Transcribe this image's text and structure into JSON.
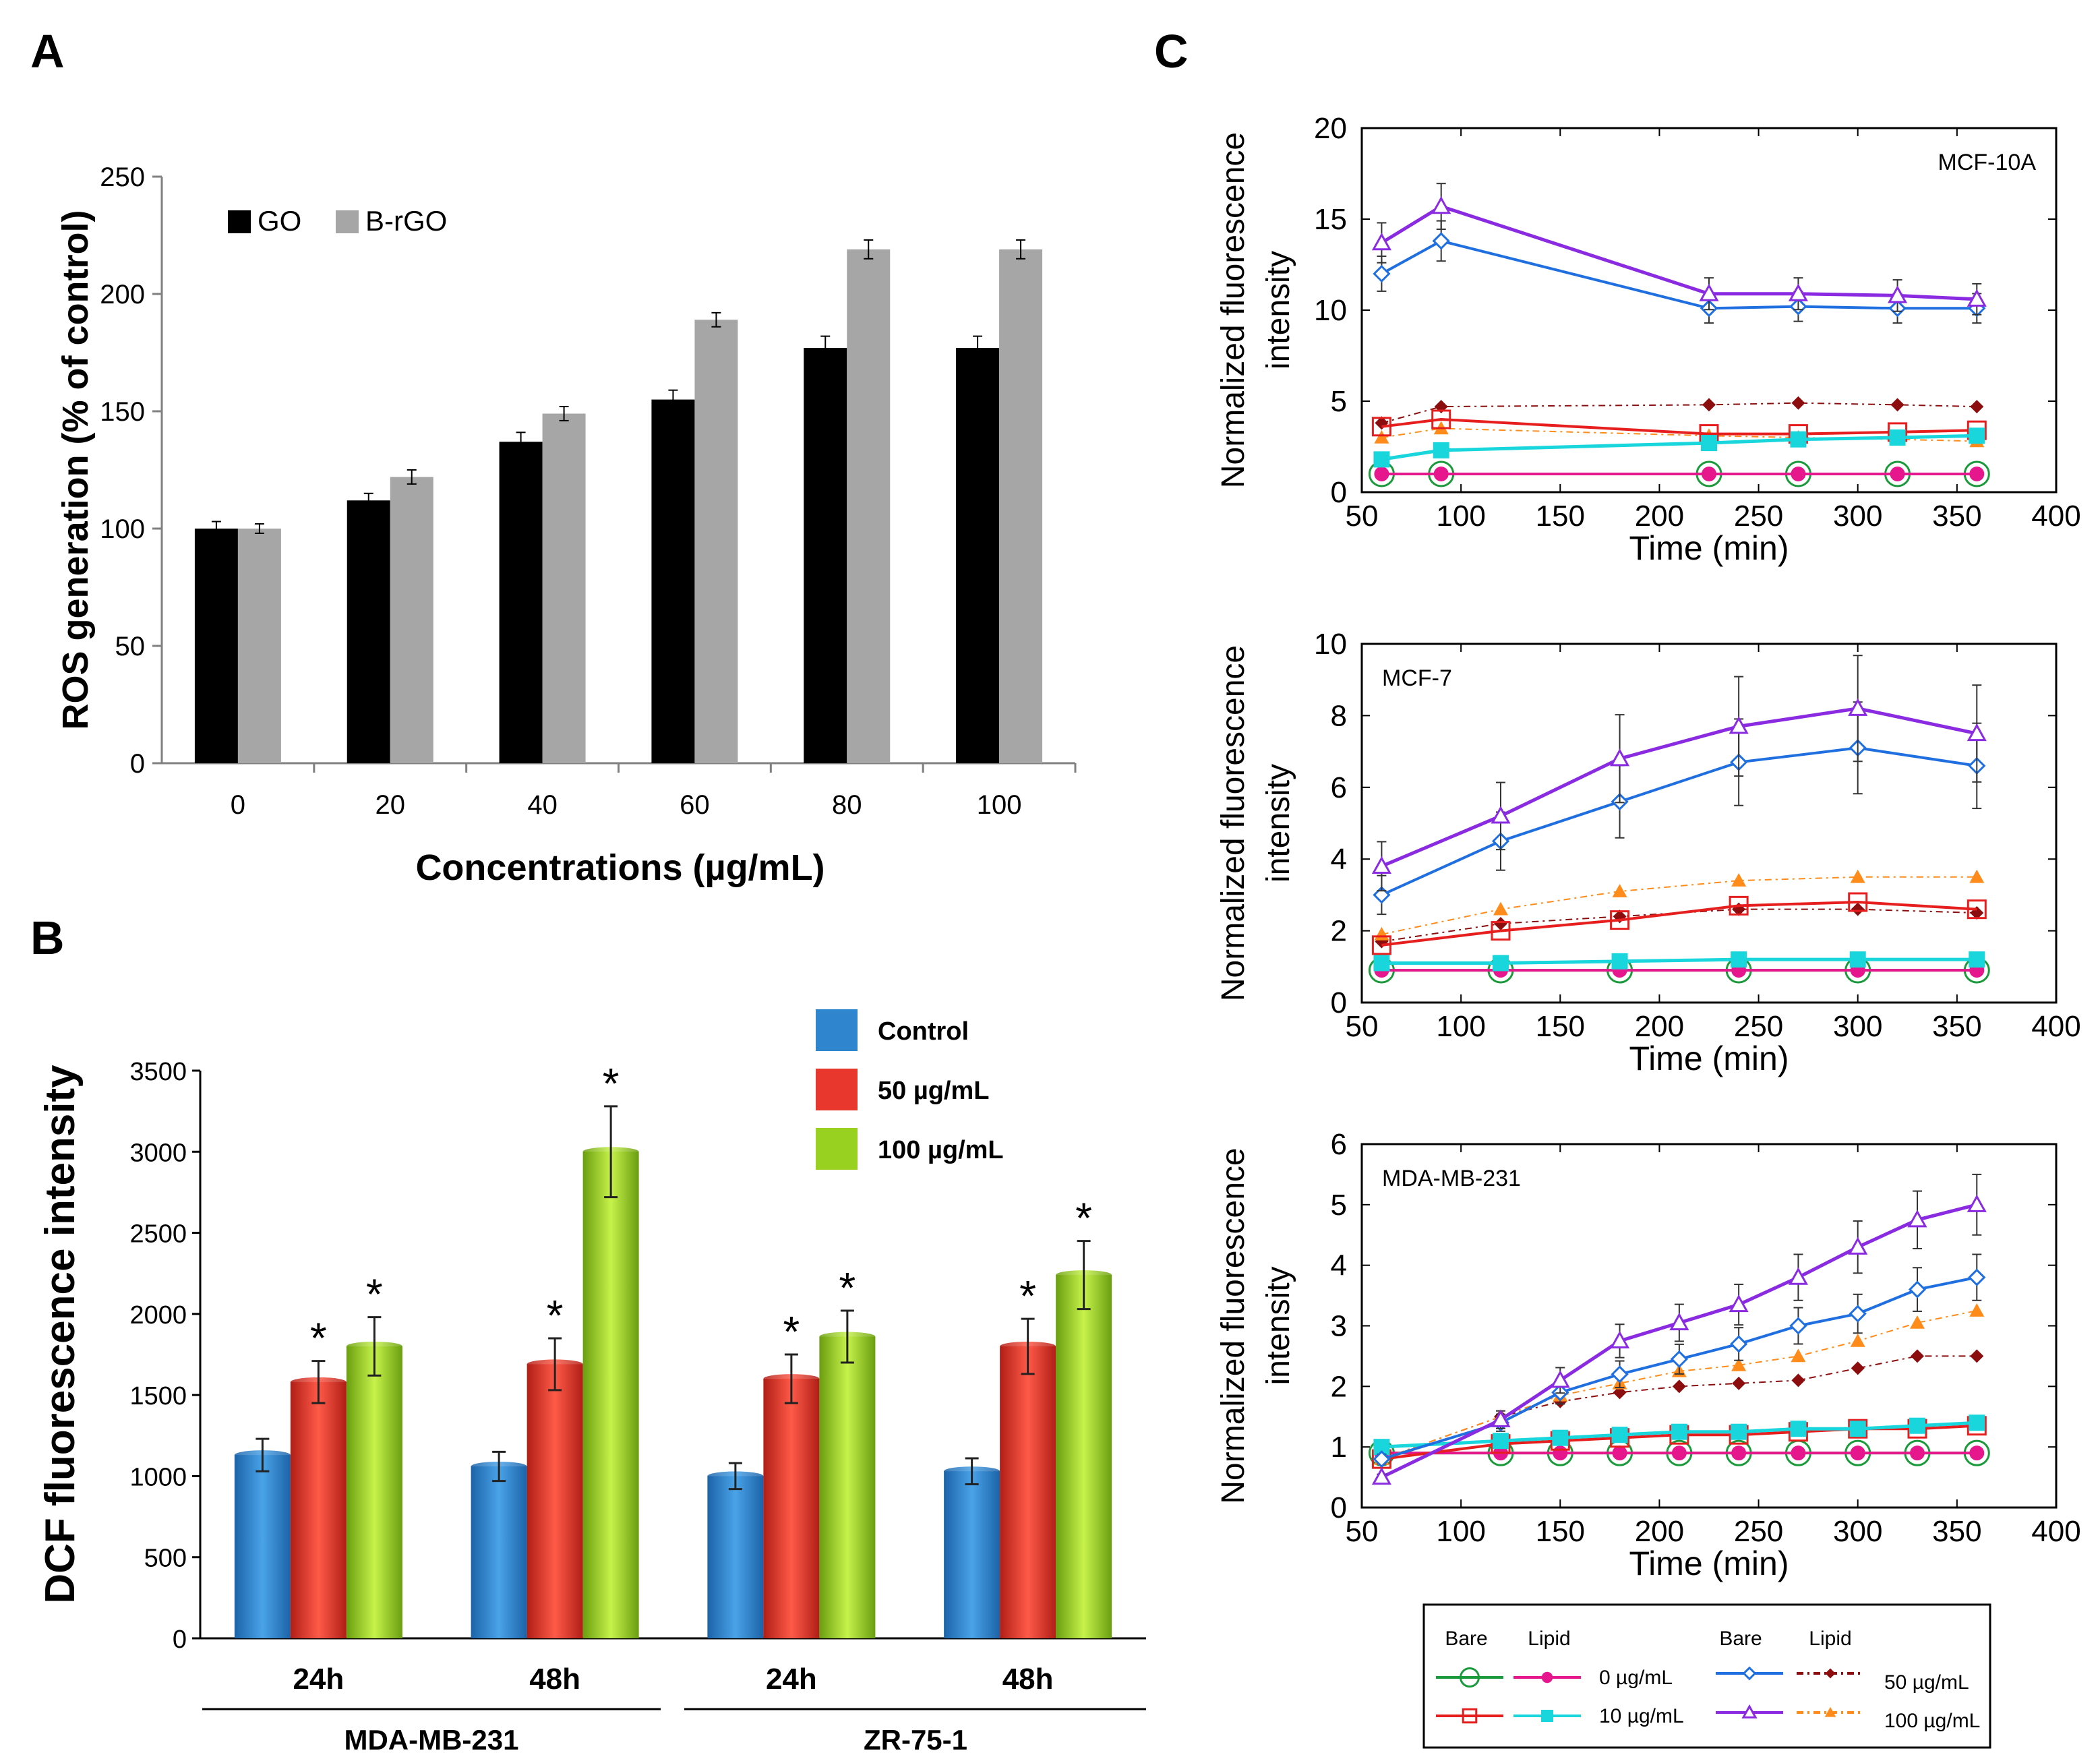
{
  "panels": {
    "a": "A",
    "b": "B",
    "c": "C"
  },
  "colors": {
    "go": "#000000",
    "brgo": "#a6a6a6",
    "control": "#2f86cf",
    "c50": "#e8372c",
    "c100": "#98d11f",
    "bare0": "#1a9a3a",
    "lipid0": "#e6178c",
    "bare10": "#e61e1e",
    "lipid10": "#19d6dc",
    "bare50": "#1f6fe0",
    "lipid50": "#8b0d0d",
    "bare100": "#8a2be2",
    "lipid100": "#ff8c1a"
  },
  "chart_data": [
    {
      "id": "A",
      "type": "bar",
      "title": "",
      "xlabel": "Concentrations (µg/mL)",
      "ylabel": "ROS generation (% of control)",
      "ylim": [
        0,
        250
      ],
      "yticks": [
        "0",
        "50",
        "100",
        "150",
        "200",
        "250"
      ],
      "categories": [
        "0",
        "20",
        "40",
        "60",
        "80",
        "100"
      ],
      "legend": [
        "GO",
        "B-rGO"
      ],
      "series": [
        {
          "name": "GO",
          "values": [
            100,
            112,
            137,
            155,
            177,
            177
          ],
          "errors": [
            3,
            3,
            4,
            4,
            5,
            5
          ]
        },
        {
          "name": "B-rGO",
          "values": [
            100,
            122,
            149,
            189,
            219,
            219
          ],
          "errors": [
            2,
            3,
            3,
            3,
            4,
            4
          ]
        }
      ]
    },
    {
      "id": "B",
      "type": "bar",
      "title": "",
      "xlabel": "",
      "ylabel": "DCF fluorescence intensity",
      "ylim": [
        0,
        3500
      ],
      "yticks": [
        "0",
        "500",
        "1000",
        "1500",
        "2000",
        "2500",
        "3000",
        "3500"
      ],
      "categories": [
        "24h",
        "48h",
        "24h",
        "48h"
      ],
      "groups": [
        "MDA-MB-231",
        "ZR-75-1"
      ],
      "star": "*",
      "legend": [
        "Control",
        "50 µg/mL",
        "100 µg/mL"
      ],
      "series": [
        {
          "name": "Control",
          "values": [
            1130,
            1060,
            1000,
            1030
          ],
          "errors": [
            100,
            90,
            80,
            80
          ],
          "significant": [
            false,
            false,
            false,
            false
          ]
        },
        {
          "name": "50 µg/mL",
          "values": [
            1580,
            1690,
            1600,
            1800
          ],
          "errors": [
            130,
            160,
            150,
            170
          ],
          "significant": [
            true,
            true,
            true,
            true
          ]
        },
        {
          "name": "100 µg/mL",
          "values": [
            1800,
            3000,
            1860,
            2240
          ],
          "errors": [
            180,
            280,
            160,
            210
          ],
          "significant": [
            true,
            true,
            true,
            true
          ]
        }
      ]
    },
    {
      "id": "C1",
      "type": "line",
      "label": "MCF-10A",
      "xlabel": "Time (min)",
      "ylabel": "Normalized fluorescence intensity",
      "xlim": [
        50,
        400
      ],
      "ylim": [
        0,
        20
      ],
      "xticks": [
        "50",
        "100",
        "150",
        "200",
        "250",
        "300",
        "350",
        "400"
      ],
      "yticks": [
        "0",
        "5",
        "10",
        "15",
        "20"
      ],
      "series": [
        {
          "name": "Bare 0 µg/mL",
          "x": [
            60,
            90,
            225,
            270,
            320,
            360
          ],
          "y": [
            1,
            1,
            1,
            1,
            1,
            1
          ]
        },
        {
          "name": "Lipid 0 µg/mL",
          "x": [
            60,
            90,
            225,
            270,
            320,
            360
          ],
          "y": [
            1,
            1,
            1,
            1,
            1,
            1
          ]
        },
        {
          "name": "Bare 10 µg/mL",
          "x": [
            60,
            90,
            225,
            270,
            320,
            360
          ],
          "y": [
            3.6,
            4.0,
            3.2,
            3.2,
            3.3,
            3.4
          ]
        },
        {
          "name": "Lipid 10 µg/mL",
          "x": [
            60,
            90,
            225,
            270,
            320,
            360
          ],
          "y": [
            1.8,
            2.3,
            2.7,
            2.9,
            3.0,
            3.1
          ]
        },
        {
          "name": "Bare 50 µg/mL",
          "x": [
            60,
            90,
            225,
            270,
            320,
            360
          ],
          "y": [
            12.0,
            13.8,
            10.1,
            10.2,
            10.1,
            10.1
          ]
        },
        {
          "name": "Lipid 50 µg/mL",
          "x": [
            60,
            90,
            225,
            270,
            320,
            360
          ],
          "y": [
            3.8,
            4.7,
            4.8,
            4.9,
            4.8,
            4.7
          ]
        },
        {
          "name": "Bare 100 µg/mL",
          "x": [
            60,
            90,
            225,
            270,
            320,
            360
          ],
          "y": [
            13.7,
            15.7,
            10.9,
            10.9,
            10.8,
            10.6
          ]
        },
        {
          "name": "Lipid 100 µg/mL",
          "x": [
            60,
            90,
            225,
            270,
            320,
            360
          ],
          "y": [
            3.0,
            3.5,
            3.1,
            3.0,
            2.9,
            2.8
          ]
        }
      ]
    },
    {
      "id": "C2",
      "type": "line",
      "label": "MCF-7",
      "xlabel": "Time (min)",
      "ylabel": "Normalized fluorescence intensity",
      "xlim": [
        50,
        400
      ],
      "ylim": [
        0,
        10
      ],
      "xticks": [
        "50",
        "100",
        "150",
        "200",
        "250",
        "300",
        "350",
        "400"
      ],
      "yticks": [
        "0",
        "2",
        "4",
        "6",
        "8",
        "10"
      ],
      "series": [
        {
          "name": "Bare 0 µg/mL",
          "x": [
            60,
            120,
            180,
            240,
            300,
            360
          ],
          "y": [
            0.9,
            0.9,
            0.9,
            0.9,
            0.9,
            0.9
          ]
        },
        {
          "name": "Lipid 0 µg/mL",
          "x": [
            60,
            120,
            180,
            240,
            300,
            360
          ],
          "y": [
            0.9,
            0.9,
            0.9,
            0.9,
            0.9,
            0.9
          ]
        },
        {
          "name": "Bare 10 µg/mL",
          "x": [
            60,
            120,
            180,
            240,
            300,
            360
          ],
          "y": [
            1.6,
            2.0,
            2.3,
            2.7,
            2.8,
            2.6
          ]
        },
        {
          "name": "Lipid 10 µg/mL",
          "x": [
            60,
            120,
            180,
            240,
            300,
            360
          ],
          "y": [
            1.1,
            1.1,
            1.15,
            1.2,
            1.2,
            1.2
          ]
        },
        {
          "name": "Bare 50 µg/mL",
          "x": [
            60,
            120,
            180,
            240,
            300,
            360
          ],
          "y": [
            3.0,
            4.5,
            5.6,
            6.7,
            7.1,
            6.6
          ]
        },
        {
          "name": "Lipid 50 µg/mL",
          "x": [
            60,
            120,
            180,
            240,
            300,
            360
          ],
          "y": [
            1.7,
            2.2,
            2.4,
            2.6,
            2.6,
            2.5
          ]
        },
        {
          "name": "Bare 100 µg/mL",
          "x": [
            60,
            120,
            180,
            240,
            300,
            360
          ],
          "y": [
            3.8,
            5.2,
            6.8,
            7.7,
            8.2,
            7.5
          ]
        },
        {
          "name": "Lipid 100 µg/mL",
          "x": [
            60,
            120,
            180,
            240,
            300,
            360
          ],
          "y": [
            1.9,
            2.6,
            3.1,
            3.4,
            3.5,
            3.5
          ]
        }
      ]
    },
    {
      "id": "C3",
      "type": "line",
      "label": "MDA-MB-231",
      "xlabel": "Time (min)",
      "ylabel": "Normalized fluorescence intensity",
      "xlim": [
        50,
        400
      ],
      "ylim": [
        0,
        6
      ],
      "xticks": [
        "50",
        "100",
        "150",
        "200",
        "250",
        "300",
        "350",
        "400"
      ],
      "yticks": [
        "0",
        "1",
        "2",
        "3",
        "4",
        "5",
        "6"
      ],
      "series": [
        {
          "name": "Bare 0 µg/mL",
          "x": [
            60,
            120,
            150,
            180,
            210,
            240,
            270,
            300,
            330,
            360
          ],
          "y": [
            0.9,
            0.9,
            0.9,
            0.9,
            0.9,
            0.9,
            0.9,
            0.9,
            0.9,
            0.9
          ]
        },
        {
          "name": "Lipid 0 µg/mL",
          "x": [
            60,
            120,
            150,
            180,
            210,
            240,
            270,
            300,
            330,
            360
          ],
          "y": [
            0.9,
            0.9,
            0.9,
            0.9,
            0.9,
            0.9,
            0.9,
            0.9,
            0.9,
            0.9
          ]
        },
        {
          "name": "Bare 10 µg/mL",
          "x": [
            60,
            120,
            150,
            180,
            210,
            240,
            270,
            300,
            330,
            360
          ],
          "y": [
            0.8,
            1.05,
            1.1,
            1.15,
            1.2,
            1.2,
            1.25,
            1.3,
            1.3,
            1.35
          ]
        },
        {
          "name": "Lipid 10 µg/mL",
          "x": [
            60,
            120,
            150,
            180,
            210,
            240,
            270,
            300,
            330,
            360
          ],
          "y": [
            1.0,
            1.1,
            1.15,
            1.2,
            1.25,
            1.25,
            1.3,
            1.3,
            1.35,
            1.4
          ]
        },
        {
          "name": "Bare 50 µg/mL",
          "x": [
            60,
            120,
            150,
            180,
            210,
            240,
            270,
            300,
            330,
            360
          ],
          "y": [
            0.8,
            1.4,
            1.9,
            2.2,
            2.45,
            2.7,
            3.0,
            3.2,
            3.6,
            3.8
          ]
        },
        {
          "name": "Lipid 50 µg/mL",
          "x": [
            60,
            120,
            150,
            180,
            210,
            240,
            270,
            300,
            330,
            360
          ],
          "y": [
            0.8,
            1.5,
            1.75,
            1.9,
            2.0,
            2.05,
            2.1,
            2.3,
            2.5,
            2.5
          ]
        },
        {
          "name": "Bare 100 µg/mL",
          "x": [
            60,
            120,
            150,
            180,
            210,
            240,
            270,
            300,
            330,
            360
          ],
          "y": [
            0.5,
            1.45,
            2.1,
            2.75,
            3.05,
            3.35,
            3.8,
            4.3,
            4.75,
            5.0
          ]
        },
        {
          "name": "Lipid 100 µg/mL",
          "x": [
            60,
            120,
            150,
            180,
            210,
            240,
            270,
            300,
            330,
            360
          ],
          "y": [
            0.8,
            1.5,
            1.85,
            2.05,
            2.25,
            2.35,
            2.5,
            2.75,
            3.05,
            3.25
          ]
        }
      ]
    }
  ],
  "legend_c": {
    "bare": "Bare",
    "lipid": "Lipid",
    "c0": "0 µg/mL",
    "c10": "10 µg/mL",
    "c50": "50 µg/mL",
    "c100": "100 µg/mL"
  }
}
